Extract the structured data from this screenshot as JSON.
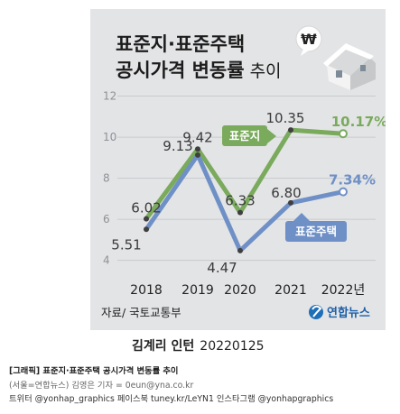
{
  "header": {
    "title_line1": "표준지·표준주택",
    "title_line2_bold": "공시가격 변동률",
    "title_line2_light": "추이",
    "coin_symbol": "₩"
  },
  "chart_data": {
    "type": "line",
    "x": [
      "2018",
      "2019",
      "2020",
      "2021",
      "2022년"
    ],
    "yticks": [
      4,
      6,
      8,
      10,
      12
    ],
    "ylim": [
      3.5,
      12.2
    ],
    "series": [
      {
        "name": "표준지",
        "values": [
          6.02,
          9.42,
          6.33,
          10.35,
          10.17
        ],
        "labels": [
          "6.02",
          "9.42",
          "6.33",
          "10.35",
          "10.17%"
        ],
        "color": "#7aaa5c"
      },
      {
        "name": "표준주택",
        "values": [
          5.51,
          9.13,
          4.47,
          6.8,
          7.34
        ],
        "labels": [
          "5.51",
          "9.13",
          "4.47",
          "6.80",
          "7.34%"
        ],
        "color": "#6f90c6"
      }
    ],
    "grid": true
  },
  "source": "자료/ 국토교통부",
  "logo_text": "연합뉴스",
  "author": {
    "name": "김계리 인턴",
    "date": "20220125"
  },
  "caption": {
    "title": "[그래픽] 표준지·표준주택 공시가격 변동률 추이",
    "credit": "(서울=연합뉴스) 김영은 기자 = 0eun@yna.co.kr",
    "social": "트위터 @yonhap_graphics 페이스북 tuney.kr/LeYN1 인스타그램 @yonhapgraphics"
  }
}
